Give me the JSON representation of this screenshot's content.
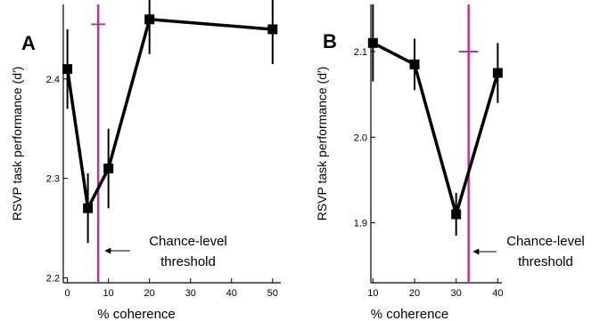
{
  "chart_data": [
    {
      "panel_label": "A",
      "type": "line",
      "xlabel": "% coherence",
      "ylabel": "RSVP task performance (d′)",
      "x": [
        0,
        5,
        10,
        20,
        50
      ],
      "values": [
        2.41,
        2.27,
        2.31,
        2.46,
        2.45
      ],
      "errors": [
        0.04,
        0.035,
        0.04,
        0.035,
        0.035
      ],
      "xlim": [
        -1,
        52
      ],
      "ylim": [
        2.195,
        2.475
      ],
      "xticks": [
        0,
        10,
        20,
        30,
        40,
        50
      ],
      "yticks": [
        2.2,
        2.3,
        2.4
      ],
      "ytick_labels": [
        "2.2",
        "2.3",
        "2.4"
      ],
      "threshold": {
        "x": 7.5,
        "y": 2.455,
        "xerr": 1.7
      },
      "annotation": [
        "Chance-level",
        "threshold"
      ],
      "grid": false
    },
    {
      "panel_label": "B",
      "type": "line",
      "xlabel": "% coherence",
      "ylabel": "RSVP task performance (d′)",
      "x": [
        10,
        20,
        30,
        40
      ],
      "values": [
        2.11,
        2.085,
        1.91,
        2.075
      ],
      "errors": [
        0.045,
        0.03,
        0.025,
        0.035
      ],
      "xlim": [
        9.5,
        41
      ],
      "ylim": [
        1.83,
        2.155
      ],
      "xticks": [
        10,
        20,
        30,
        40
      ],
      "yticks": [
        1.9,
        2.0,
        2.1
      ],
      "ytick_labels": [
        "1.9",
        "2.0",
        "2.1"
      ],
      "threshold": {
        "x": 33,
        "y": 2.1,
        "xerr": 2.3
      },
      "annotation": [
        "Chance-level",
        "threshold"
      ],
      "grid": false
    }
  ],
  "colors": {
    "data": "#000000",
    "threshold": "#c8308c",
    "axis": "#000000"
  }
}
